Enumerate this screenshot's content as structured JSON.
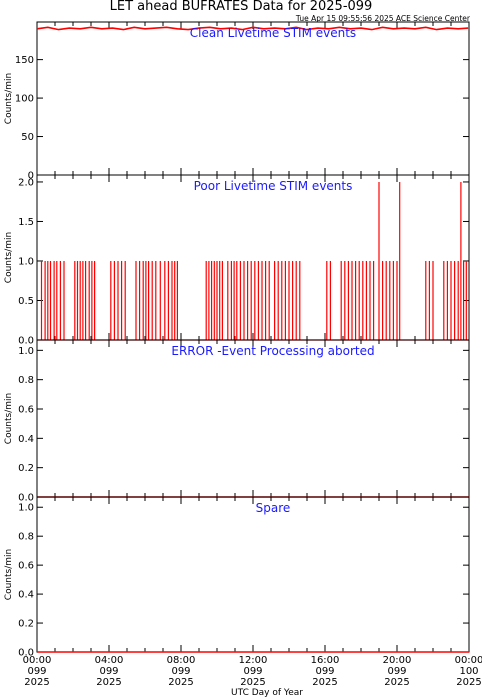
{
  "title": "LET ahead BUFRATES Data for 2025-099",
  "timestamp": "Tue Apr 15 09:55:56 2025 ACE Science Center",
  "colors": {
    "data": "#ff0000",
    "panel_title": "#1a1aff",
    "axes": "#000000"
  },
  "chart_data": {
    "type": "line",
    "xlabel": "UTC Day of Year",
    "x_range_hours": [
      0,
      24
    ],
    "x_ticks": [
      {
        "hour": 0,
        "time": "00:00",
        "doy": "099",
        "year": "2025"
      },
      {
        "hour": 4,
        "time": "04:00",
        "doy": "099",
        "year": "2025"
      },
      {
        "hour": 8,
        "time": "08:00",
        "doy": "099",
        "year": "2025"
      },
      {
        "hour": 12,
        "time": "12:00",
        "doy": "099",
        "year": "2025"
      },
      {
        "hour": 16,
        "time": "16:00",
        "doy": "099",
        "year": "2025"
      },
      {
        "hour": 20,
        "time": "20:00",
        "doy": "099",
        "year": "2025"
      },
      {
        "hour": 24,
        "time": "00:00",
        "doy": "100",
        "year": "2025"
      }
    ],
    "panels": [
      {
        "title": "Clean Livetime STIM events",
        "ylabel": "Counts/min",
        "ylim": [
          0,
          195
        ],
        "yticks": [
          0,
          50,
          100,
          150
        ],
        "ytick_labels": [
          "0",
          "50",
          "100",
          "150"
        ],
        "series": [
          {
            "points": [
              [
                0,
                190
              ],
              [
                0.6,
                192
              ],
              [
                1.2,
                189
              ],
              [
                1.8,
                191
              ],
              [
                2.4,
                190
              ],
              [
                3.0,
                192
              ],
              [
                3.6,
                190
              ],
              [
                4.2,
                191
              ],
              [
                4.8,
                189
              ],
              [
                5.4,
                192
              ],
              [
                6.0,
                190
              ],
              [
                6.6,
                191
              ],
              [
                7.2,
                192
              ],
              [
                7.8,
                190
              ],
              [
                8.4,
                189
              ],
              [
                9.0,
                191
              ],
              [
                9.6,
                192
              ],
              [
                10.2,
                190
              ],
              [
                10.8,
                191
              ],
              [
                11.4,
                189
              ],
              [
                12.0,
                192
              ],
              [
                12.6,
                190
              ],
              [
                13.2,
                191
              ],
              [
                13.8,
                190
              ],
              [
                14.4,
                192
              ],
              [
                15.0,
                189
              ],
              [
                15.6,
                191
              ],
              [
                16.2,
                190
              ],
              [
                16.8,
                192
              ],
              [
                17.4,
                190
              ],
              [
                18.0,
                191
              ],
              [
                18.6,
                189
              ],
              [
                19.2,
                192
              ],
              [
                19.8,
                190
              ],
              [
                20.4,
                191
              ],
              [
                21.0,
                190
              ],
              [
                21.6,
                192
              ],
              [
                22.2,
                189
              ],
              [
                22.8,
                191
              ],
              [
                23.4,
                190
              ],
              [
                23.95,
                191
              ]
            ]
          }
        ]
      },
      {
        "title": "Poor Livetime STIM events",
        "ylabel": "Counts/min",
        "ylim": [
          0,
          2.05
        ],
        "yticks": [
          0,
          0.5,
          1,
          1.5,
          2
        ],
        "ytick_labels": [
          "0.0",
          "0.5",
          "1.0",
          "1.5",
          "2.0"
        ],
        "series": [
          {
            "spikes": [
              {
                "x": 0.25,
                "y": 1
              },
              {
                "x": 0.45,
                "y": 1
              },
              {
                "x": 0.6,
                "y": 1
              },
              {
                "x": 0.75,
                "y": 1
              },
              {
                "x": 0.95,
                "y": 1
              },
              {
                "x": 1.1,
                "y": 1
              },
              {
                "x": 1.3,
                "y": 1
              },
              {
                "x": 1.5,
                "y": 1
              },
              {
                "x": 2.1,
                "y": 1
              },
              {
                "x": 2.25,
                "y": 1
              },
              {
                "x": 2.4,
                "y": 1
              },
              {
                "x": 2.55,
                "y": 1
              },
              {
                "x": 2.7,
                "y": 1
              },
              {
                "x": 2.9,
                "y": 1
              },
              {
                "x": 3.05,
                "y": 1
              },
              {
                "x": 3.2,
                "y": 1
              },
              {
                "x": 4.1,
                "y": 1
              },
              {
                "x": 4.3,
                "y": 1
              },
              {
                "x": 4.5,
                "y": 1
              },
              {
                "x": 4.7,
                "y": 1
              },
              {
                "x": 4.9,
                "y": 1
              },
              {
                "x": 5.5,
                "y": 1
              },
              {
                "x": 5.7,
                "y": 1
              },
              {
                "x": 5.9,
                "y": 1
              },
              {
                "x": 6.05,
                "y": 1
              },
              {
                "x": 6.2,
                "y": 1
              },
              {
                "x": 6.4,
                "y": 1
              },
              {
                "x": 6.6,
                "y": 1
              },
              {
                "x": 6.85,
                "y": 1
              },
              {
                "x": 7.1,
                "y": 1
              },
              {
                "x": 7.3,
                "y": 1
              },
              {
                "x": 7.5,
                "y": 1
              },
              {
                "x": 7.65,
                "y": 1
              },
              {
                "x": 7.8,
                "y": 1
              },
              {
                "x": 9.4,
                "y": 1
              },
              {
                "x": 9.55,
                "y": 1
              },
              {
                "x": 9.7,
                "y": 1
              },
              {
                "x": 9.85,
                "y": 1
              },
              {
                "x": 10.0,
                "y": 1
              },
              {
                "x": 10.15,
                "y": 1
              },
              {
                "x": 10.3,
                "y": 1
              },
              {
                "x": 10.6,
                "y": 1
              },
              {
                "x": 10.8,
                "y": 1
              },
              {
                "x": 10.95,
                "y": 1
              },
              {
                "x": 11.1,
                "y": 1
              },
              {
                "x": 11.3,
                "y": 1
              },
              {
                "x": 11.5,
                "y": 1
              },
              {
                "x": 11.7,
                "y": 1
              },
              {
                "x": 11.9,
                "y": 1
              },
              {
                "x": 12.1,
                "y": 1
              },
              {
                "x": 12.3,
                "y": 1
              },
              {
                "x": 12.5,
                "y": 1
              },
              {
                "x": 12.7,
                "y": 1
              },
              {
                "x": 12.9,
                "y": 1
              },
              {
                "x": 13.2,
                "y": 1
              },
              {
                "x": 13.4,
                "y": 1
              },
              {
                "x": 13.6,
                "y": 1
              },
              {
                "x": 13.8,
                "y": 1
              },
              {
                "x": 14.0,
                "y": 1
              },
              {
                "x": 14.2,
                "y": 1
              },
              {
                "x": 14.4,
                "y": 1
              },
              {
                "x": 14.6,
                "y": 1
              },
              {
                "x": 16.1,
                "y": 1
              },
              {
                "x": 16.3,
                "y": 1
              },
              {
                "x": 16.9,
                "y": 1
              },
              {
                "x": 17.1,
                "y": 1
              },
              {
                "x": 17.3,
                "y": 1
              },
              {
                "x": 17.5,
                "y": 1
              },
              {
                "x": 17.7,
                "y": 1
              },
              {
                "x": 17.9,
                "y": 1
              },
              {
                "x": 18.1,
                "y": 1
              },
              {
                "x": 18.3,
                "y": 1
              },
              {
                "x": 18.5,
                "y": 1
              },
              {
                "x": 18.7,
                "y": 1
              },
              {
                "x": 19.0,
                "y": 2
              },
              {
                "x": 19.2,
                "y": 1
              },
              {
                "x": 19.4,
                "y": 1
              },
              {
                "x": 19.6,
                "y": 1
              },
              {
                "x": 19.8,
                "y": 1
              },
              {
                "x": 20.0,
                "y": 1
              },
              {
                "x": 20.15,
                "y": 2
              },
              {
                "x": 21.6,
                "y": 1
              },
              {
                "x": 21.8,
                "y": 1
              },
              {
                "x": 22.0,
                "y": 1
              },
              {
                "x": 22.6,
                "y": 1
              },
              {
                "x": 22.8,
                "y": 1
              },
              {
                "x": 23.0,
                "y": 1
              },
              {
                "x": 23.2,
                "y": 1
              },
              {
                "x": 23.4,
                "y": 1
              },
              {
                "x": 23.55,
                "y": 2
              },
              {
                "x": 23.7,
                "y": 1
              },
              {
                "x": 23.85,
                "y": 1
              }
            ]
          }
        ]
      },
      {
        "title": "ERROR -Event Processing aborted",
        "ylabel": "Counts/min",
        "ylim": [
          0,
          1.05
        ],
        "yticks": [
          0,
          0.2,
          0.4,
          0.6,
          0.8,
          1
        ],
        "ytick_labels": [
          "0.0",
          "0.2",
          "0.4",
          "0.6",
          "0.8",
          "1.0"
        ],
        "series": [
          {
            "points": [
              [
                0,
                0
              ],
              [
                24,
                0
              ]
            ]
          }
        ]
      },
      {
        "title": "Spare",
        "ylabel": "Counts/min",
        "ylim": [
          0,
          1.05
        ],
        "yticks": [
          0,
          0.2,
          0.4,
          0.6,
          0.8,
          1
        ],
        "ytick_labels": [
          "0.0",
          "0.2",
          "0.4",
          "0.6",
          "0.8",
          "1.0"
        ],
        "series": [
          {
            "points": [
              [
                0,
                0
              ],
              [
                24,
                0
              ]
            ]
          }
        ]
      }
    ]
  }
}
